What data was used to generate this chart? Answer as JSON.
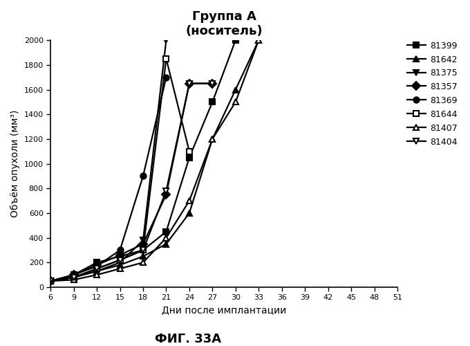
{
  "title_line1": "Группа А",
  "title_line2": "(носитель)",
  "xlabel": "Дни после имплантации",
  "ylabel": "Объём опухоли (мм³)",
  "caption": "ФИГ. 33А",
  "xlim": [
    6,
    51
  ],
  "ylim": [
    0,
    2000
  ],
  "xticks": [
    6,
    9,
    12,
    15,
    18,
    21,
    24,
    27,
    30,
    33,
    36,
    39,
    42,
    45,
    48,
    51
  ],
  "yticks": [
    0,
    200,
    400,
    600,
    800,
    1000,
    1200,
    1400,
    1600,
    1800,
    2000
  ],
  "series": [
    {
      "label": "81399",
      "marker": "s",
      "fillstyle": "full",
      "x": [
        6,
        9,
        12,
        15,
        18,
        21,
        24,
        27,
        30
      ],
      "y": [
        50,
        100,
        200,
        250,
        300,
        450,
        1050,
        1500,
        2000
      ]
    },
    {
      "label": "81642",
      "marker": "^",
      "fillstyle": "full",
      "x": [
        6,
        9,
        12,
        15,
        18,
        21,
        24,
        27,
        30,
        33
      ],
      "y": [
        50,
        80,
        130,
        180,
        250,
        350,
        600,
        1200,
        1600,
        2000
      ]
    },
    {
      "label": "81375",
      "marker": "v",
      "fillstyle": "full",
      "x": [
        6,
        9,
        12,
        15,
        18,
        21
      ],
      "y": [
        50,
        80,
        130,
        200,
        380,
        2000
      ]
    },
    {
      "label": "81357",
      "marker": "D",
      "fillstyle": "full",
      "x": [
        6,
        9,
        12,
        15,
        18,
        21,
        24,
        27
      ],
      "y": [
        50,
        100,
        180,
        260,
        350,
        750,
        1650,
        1650
      ]
    },
    {
      "label": "81369",
      "marker": "o",
      "fillstyle": "full",
      "x": [
        6,
        9,
        12,
        15,
        18,
        21
      ],
      "y": [
        50,
        100,
        170,
        300,
        900,
        1700
      ]
    },
    {
      "label": "81644",
      "marker": "s",
      "fillstyle": "none",
      "x": [
        6,
        9,
        12,
        15,
        18,
        21,
        24
      ],
      "y": [
        50,
        80,
        150,
        220,
        300,
        1850,
        1100
      ]
    },
    {
      "label": "81407",
      "marker": "^",
      "fillstyle": "none",
      "x": [
        6,
        9,
        12,
        15,
        18,
        21,
        24,
        27,
        30,
        33
      ],
      "y": [
        50,
        60,
        100,
        150,
        200,
        400,
        700,
        1200,
        1500,
        2000
      ]
    },
    {
      "label": "81404",
      "marker": "v",
      "fillstyle": "none",
      "x": [
        6,
        9,
        12,
        15,
        18,
        21,
        24,
        27
      ],
      "y": [
        50,
        80,
        150,
        220,
        300,
        780,
        1650,
        1650
      ]
    }
  ],
  "line_color": "#000000",
  "line_width": 1.6,
  "marker_size": 6,
  "background_color": "#ffffff",
  "title_fontsize": 13,
  "axis_label_fontsize": 10,
  "tick_fontsize": 8,
  "caption_fontsize": 13,
  "legend_fontsize": 9
}
